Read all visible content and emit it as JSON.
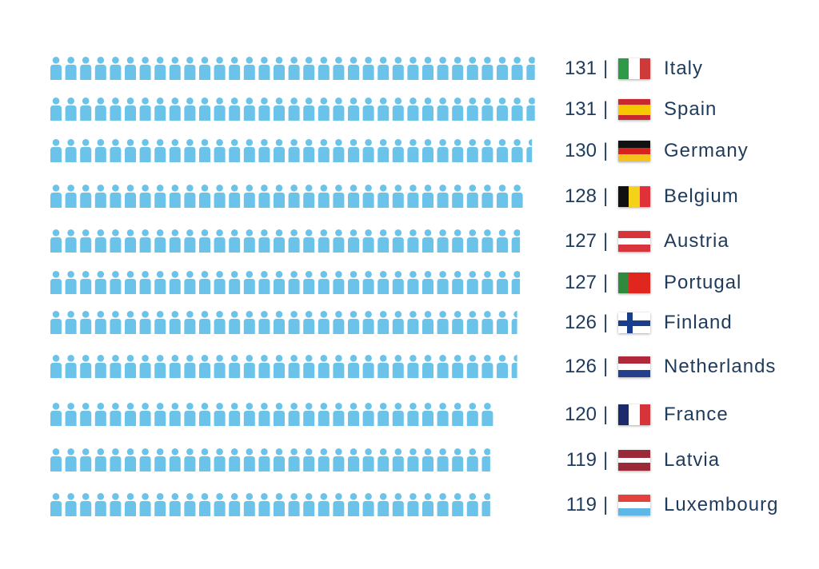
{
  "chart_data": {
    "type": "bar",
    "style": "pictogram",
    "icon": "person-icon",
    "icon_color": "#6cc3e9",
    "categories": [
      "Italy",
      "Spain",
      "Germany",
      "Belgium",
      "Austria",
      "Portugal",
      "Finland",
      "Netherlands",
      "France",
      "Latvia",
      "Luxembourg"
    ],
    "values": [
      131,
      131,
      130,
      128,
      127,
      127,
      126,
      126,
      120,
      119,
      119
    ],
    "value_prefix_separator": "|",
    "flags": [
      {
        "name": "italy-flag",
        "type": "v",
        "colors": [
          "#2e9a47",
          "#ffffff",
          "#cd3a3a"
        ]
      },
      {
        "name": "spain-flag",
        "type": "h",
        "colors": [
          "#c8282f",
          "#f6c800",
          "#f6c800",
          "#c8282f"
        ]
      },
      {
        "name": "germany-flag",
        "type": "h",
        "colors": [
          "#111111",
          "#d6231e",
          "#f4c21a"
        ]
      },
      {
        "name": "belgium-flag",
        "type": "v",
        "colors": [
          "#111111",
          "#f4d21a",
          "#e0303a"
        ]
      },
      {
        "name": "austria-flag",
        "type": "h",
        "colors": [
          "#d8343c",
          "#ffffff",
          "#d8343c"
        ]
      },
      {
        "name": "portugal-flag",
        "type": "v",
        "colors": [
          "#2f8a3d",
          "#e0261f",
          "#e0261f"
        ]
      },
      {
        "name": "finland-flag",
        "type": "cross",
        "colors": [
          "#ffffff",
          "#193e8c"
        ]
      },
      {
        "name": "netherlands-flag",
        "type": "h",
        "colors": [
          "#b1283a",
          "#ffffff",
          "#24408c"
        ]
      },
      {
        "name": "france-flag",
        "type": "v",
        "colors": [
          "#1b2a6b",
          "#ffffff",
          "#d5343a"
        ]
      },
      {
        "name": "latvia-flag",
        "type": "h",
        "colors": [
          "#9a2a38",
          "#9a2a38",
          "#ffffff",
          "#9a2a38",
          "#9a2a38"
        ]
      },
      {
        "name": "luxembourg-flag",
        "type": "h",
        "colors": [
          "#e3423c",
          "#ffffff",
          "#5fb7e8"
        ]
      }
    ]
  }
}
